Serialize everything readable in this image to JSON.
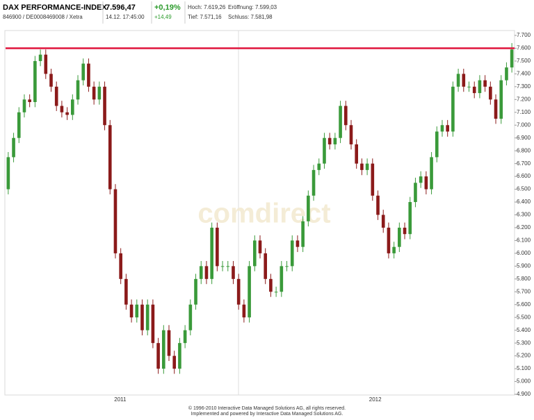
{
  "header": {
    "name": "DAX PERFORMANCE-INDEX",
    "price": "7.596,47",
    "change_pct": "+0,19%",
    "change_abs": "+14,49",
    "ids": "846900 / DE0008469008 / Xetra",
    "time": "14.12. 17:45:00",
    "high": "Hoch: 7.619,26",
    "open": "Eröffnung: 7.599,03",
    "low": "Tief: 7.571,16",
    "close": "Schluss: 7.581,98"
  },
  "chart_data": {
    "type": "candlestick",
    "watermark": "comdirect",
    "up_color": "#3a9a3a",
    "down_color": "#8b1a1a",
    "reference_line": 7600,
    "reference_color": "#e0143c",
    "open": [
      6500,
      6750,
      6900,
      7100,
      7200,
      7180,
      7500,
      7550,
      7400,
      7300,
      7150,
      7100,
      7080,
      7200,
      7350,
      7480,
      7300,
      7200,
      7300,
      7000,
      6500,
      6000,
      5800,
      5600,
      5500,
      5600,
      5400,
      5600,
      5300,
      5100,
      5400,
      5200,
      5100,
      5300,
      5400,
      5600,
      5800,
      5900,
      5800,
      6200,
      5900,
      5900,
      5900,
      5800,
      5600,
      5500,
      5900,
      6100,
      6000,
      5800,
      5700,
      5700,
      5900,
      5900,
      6100,
      6050,
      6250,
      6450,
      6650,
      6700,
      6900,
      6850,
      6900,
      7150,
      7000,
      6850,
      6700,
      6650,
      6700,
      6450,
      6300,
      6200,
      6000,
      6050,
      6200,
      6150,
      6400,
      6550,
      6600,
      6500,
      6750,
      6950,
      7000,
      6950,
      7300,
      7400,
      7300,
      7300,
      7250,
      7350,
      7300,
      7200,
      7050,
      7350,
      7450
    ],
    "high": [
      6790,
      6940,
      7140,
      7240,
      7240,
      7540,
      7590,
      7590,
      7440,
      7340,
      7190,
      7140,
      7240,
      7390,
      7520,
      7520,
      7340,
      7340,
      7340,
      7040,
      6540,
      6040,
      5840,
      5640,
      5640,
      5640,
      5640,
      5640,
      5340,
      5440,
      5440,
      5240,
      5340,
      5440,
      5640,
      5840,
      5940,
      5940,
      6240,
      6240,
      5940,
      5940,
      5940,
      5840,
      5640,
      5940,
      6140,
      6140,
      6040,
      5840,
      5740,
      5940,
      5940,
      6140,
      6140,
      6290,
      6490,
      6690,
      6740,
      6940,
      6940,
      6940,
      7190,
      7190,
      7040,
      6890,
      6740,
      6740,
      6740,
      6490,
      6340,
      6240,
      6090,
      6240,
      6240,
      6440,
      6590,
      6640,
      6640,
      6790,
      6990,
      7040,
      7040,
      7340,
      7440,
      7440,
      7340,
      7340,
      7390,
      7390,
      7340,
      7240,
      7390,
      7490,
      7640
    ],
    "low": [
      6460,
      6710,
      6860,
      7060,
      7140,
      7140,
      7460,
      7360,
      7260,
      7110,
      7060,
      7040,
      7040,
      7160,
      7310,
      7260,
      7160,
      7160,
      6960,
      6460,
      5960,
      5760,
      5560,
      5460,
      5460,
      5360,
      5360,
      5260,
      5060,
      5060,
      5160,
      5060,
      5060,
      5260,
      5360,
      5560,
      5760,
      5760,
      5760,
      5860,
      5860,
      5860,
      5760,
      5560,
      5460,
      5460,
      5860,
      5960,
      5760,
      5660,
      5660,
      5660,
      5860,
      5860,
      6010,
      6010,
      6210,
      6410,
      6610,
      6660,
      6810,
      6810,
      6860,
      6960,
      6810,
      6660,
      6610,
      6610,
      6410,
      6260,
      6160,
      5960,
      5960,
      6010,
      6110,
      6110,
      6360,
      6510,
      6460,
      6460,
      6710,
      6910,
      6910,
      6910,
      7260,
      7260,
      7260,
      7210,
      7210,
      7260,
      7160,
      7010,
      7010,
      7310,
      7410
    ],
    "close": [
      6750,
      6900,
      7100,
      7200,
      7180,
      7500,
      7550,
      7400,
      7300,
      7150,
      7100,
      7080,
      7200,
      7350,
      7480,
      7300,
      7200,
      7300,
      7000,
      6500,
      6000,
      5800,
      5600,
      5500,
      5600,
      5400,
      5600,
      5300,
      5100,
      5400,
      5200,
      5100,
      5300,
      5400,
      5600,
      5800,
      5900,
      5800,
      6200,
      5900,
      5900,
      5900,
      5800,
      5600,
      5500,
      5900,
      6100,
      6000,
      5800,
      5700,
      5700,
      5900,
      5900,
      6100,
      6050,
      6250,
      6450,
      6650,
      6700,
      6900,
      6850,
      6900,
      7150,
      7000,
      6850,
      6700,
      6650,
      6700,
      6450,
      6300,
      6200,
      6000,
      6050,
      6200,
      6150,
      6400,
      6550,
      6600,
      6500,
      6750,
      6950,
      7000,
      6950,
      7300,
      7400,
      7300,
      7300,
      7250,
      7350,
      7300,
      7200,
      7050,
      7350,
      7450,
      7590
    ],
    "xlim": [
      0,
      95
    ],
    "xticks": [
      {
        "value": 21.4,
        "label": "2011"
      },
      {
        "value": 69,
        "label": "2012"
      }
    ],
    "ylim": [
      4900,
      7700
    ],
    "yticks": [
      {
        "value": 4900,
        "label": "4.900"
      },
      {
        "value": 5000,
        "label": "5.000"
      },
      {
        "value": 5100,
        "label": "5.100"
      },
      {
        "value": 5200,
        "label": "5.200"
      },
      {
        "value": 5300,
        "label": "5.300"
      },
      {
        "value": 5400,
        "label": "5.400"
      },
      {
        "value": 5500,
        "label": "5.500"
      },
      {
        "value": 5600,
        "label": "5.600"
      },
      {
        "value": 5700,
        "label": "5.700"
      },
      {
        "value": 5800,
        "label": "5.800"
      },
      {
        "value": 5900,
        "label": "5.900"
      },
      {
        "value": 6000,
        "label": "6.000"
      },
      {
        "value": 6100,
        "label": "6.100"
      },
      {
        "value": 6200,
        "label": "6.200"
      },
      {
        "value": 6300,
        "label": "6.300"
      },
      {
        "value": 6400,
        "label": "6.400"
      },
      {
        "value": 6500,
        "label": "6.500"
      },
      {
        "value": 6600,
        "label": "6.600"
      },
      {
        "value": 6700,
        "label": "6.700"
      },
      {
        "value": 6800,
        "label": "6.800"
      },
      {
        "value": 6900,
        "label": "6.900"
      },
      {
        "value": 7000,
        "label": "7.000"
      },
      {
        "value": 7100,
        "label": "7.100"
      },
      {
        "value": 7200,
        "label": "7.200"
      },
      {
        "value": 7300,
        "label": "7.300"
      },
      {
        "value": 7400,
        "label": "7.400"
      },
      {
        "value": 7500,
        "label": "7.500"
      },
      {
        "value": 7600,
        "label": "7.600"
      },
      {
        "value": 7700,
        "label": "7.700"
      }
    ]
  },
  "footer": {
    "line1": "© 1996-2010 Interactive Data Managed Solutions AG, all rights reserved.",
    "line2": "Implemented and powered by Interactive Data Managed Solutions AG."
  }
}
